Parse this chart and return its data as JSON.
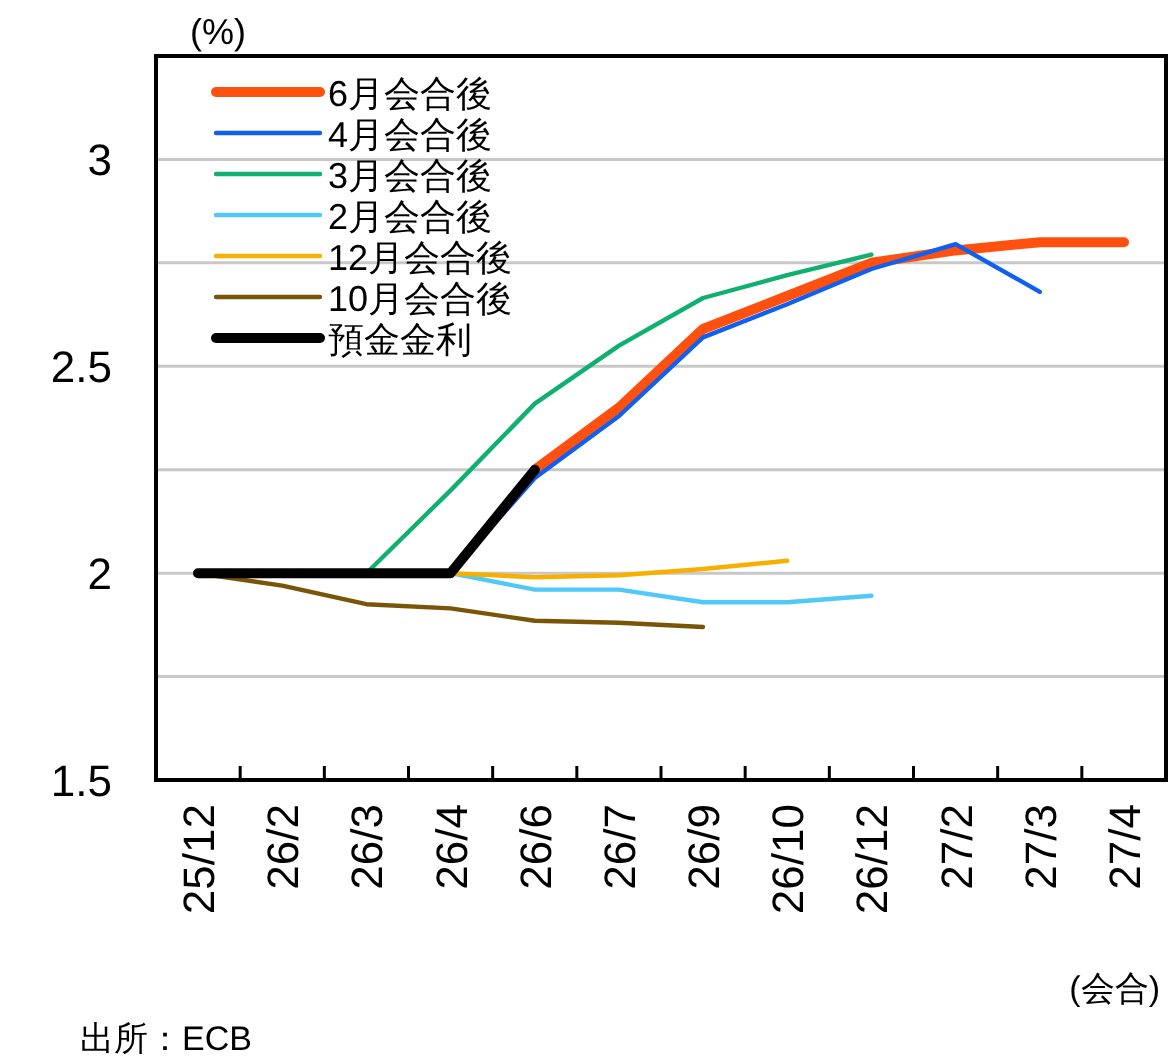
{
  "chart_data": {
    "type": "line",
    "ylabel": "(%)",
    "xlabel": "(会合)",
    "annotations": [
      "出所：ECB"
    ],
    "categories": [
      "25/12",
      "26/2",
      "26/3",
      "26/4",
      "26/6",
      "26/7",
      "26/9",
      "26/10",
      "26/12",
      "27/2",
      "27/3",
      "27/4"
    ],
    "ylim": [
      1.5,
      3.25
    ],
    "yticks": [
      1.5,
      {
        "value": 1.75,
        "label": null
      },
      2,
      {
        "value": 2.25,
        "label": null
      },
      2.5,
      {
        "value": 2.75,
        "label": null
      },
      3,
      {
        "value": 3.25,
        "label": null
      }
    ],
    "grid": "y",
    "legend": "top left",
    "marker": "none",
    "line_style": "solid",
    "series": [
      {
        "name": "6月会合後",
        "color": "#ff5010",
        "values": [
          null,
          null,
          null,
          null,
          2.25,
          2.4,
          2.59,
          2.67,
          2.75,
          2.78,
          2.8,
          2.8
        ]
      },
      {
        "name": "4月会合後",
        "color": "#1060f0",
        "values": [
          null,
          null,
          null,
          2,
          2.23,
          2.38,
          2.57,
          2.65,
          2.735,
          2.795,
          2.68,
          null
        ]
      },
      {
        "name": "3月会合後",
        "color": "#10b070",
        "values": [
          null,
          null,
          2,
          2.2,
          2.41,
          2.55,
          2.665,
          2.72,
          2.77,
          null,
          null,
          null
        ]
      },
      {
        "name": "2月会合後",
        "color": "#50c8f8",
        "values": [
          null,
          null,
          null,
          2,
          1.96,
          1.96,
          1.93,
          1.93,
          1.945,
          null,
          null,
          null
        ]
      },
      {
        "name": "12月会合後",
        "color": "#f8b000",
        "values": [
          null,
          null,
          null,
          2,
          1.99,
          1.995,
          2.01,
          2.03,
          null,
          null,
          null,
          null
        ]
      },
      {
        "name": "10月会合後",
        "color": "#7a5508",
        "values": [
          2,
          1.97,
          1.925,
          1.915,
          1.885,
          1.88,
          1.87,
          null,
          null,
          null,
          null,
          null
        ]
      },
      {
        "name": "預金金利",
        "color": "#000000",
        "values": [
          2,
          2,
          2,
          2,
          2.25,
          null,
          null,
          null,
          null,
          null,
          null,
          null
        ]
      }
    ]
  }
}
